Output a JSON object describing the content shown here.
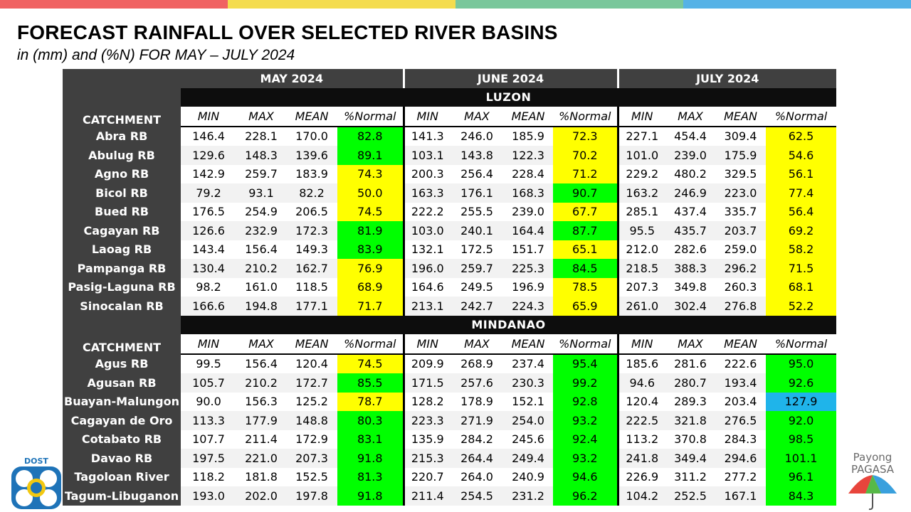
{
  "colors": [
    "#f06262",
    "#f4dc4e",
    "#79c79b",
    "#56b2e6"
  ],
  "title": "FORECAST RAINFALL OVER SELECTED RIVER BASINS",
  "subtitle": "in (mm) and (%N) FOR  MAY – JULY 2024",
  "months": [
    "MAY 2024",
    "JUNE 2024",
    "JULY 2024"
  ],
  "catchment_label": "CATCHMENT",
  "col_headers": [
    "MIN",
    "MAX",
    "MEAN",
    "%Normal",
    "MIN",
    "MAX",
    "MEAN",
    "%Normal",
    "MIN",
    "MAX",
    "MEAN",
    "%Normal"
  ],
  "regions": [
    {
      "name": "LUZON",
      "rows": [
        {
          "name": "Abra RB",
          "vals": [
            "146.4",
            "228.1",
            "170.0",
            "82.8",
            "141.3",
            "246.0",
            "185.9",
            "72.3",
            "227.1",
            "454.4",
            "309.4",
            "62.5"
          ],
          "cls": [
            "g",
            "y",
            "y"
          ]
        },
        {
          "name": "Abulug RB",
          "vals": [
            "129.6",
            "148.3",
            "139.6",
            "89.1",
            "103.1",
            "143.8",
            "122.3",
            "70.2",
            "101.0",
            "239.0",
            "175.9",
            "54.6"
          ],
          "cls": [
            "g",
            "y",
            "y"
          ]
        },
        {
          "name": "Agno RB",
          "vals": [
            "142.9",
            "259.7",
            "183.9",
            "74.3",
            "200.3",
            "256.4",
            "228.4",
            "71.2",
            "229.2",
            "480.2",
            "329.5",
            "56.1"
          ],
          "cls": [
            "y",
            "y",
            "y"
          ]
        },
        {
          "name": "Bicol RB",
          "vals": [
            "79.2",
            "93.1",
            "82.2",
            "50.0",
            "163.3",
            "176.1",
            "168.3",
            "90.7",
            "163.2",
            "246.9",
            "223.0",
            "77.4"
          ],
          "cls": [
            "y",
            "g",
            "y"
          ]
        },
        {
          "name": "Bued RB",
          "vals": [
            "176.5",
            "254.9",
            "206.5",
            "74.5",
            "222.2",
            "255.5",
            "239.0",
            "67.7",
            "285.1",
            "437.4",
            "335.7",
            "56.4"
          ],
          "cls": [
            "y",
            "y",
            "y"
          ]
        },
        {
          "name": "Cagayan RB",
          "vals": [
            "126.6",
            "232.9",
            "172.3",
            "81.9",
            "103.0",
            "240.1",
            "164.4",
            "87.7",
            "95.5",
            "435.7",
            "203.7",
            "69.2"
          ],
          "cls": [
            "g",
            "g",
            "y"
          ]
        },
        {
          "name": "Laoag RB",
          "vals": [
            "143.4",
            "156.4",
            "149.3",
            "83.9",
            "132.1",
            "172.5",
            "151.7",
            "65.1",
            "212.0",
            "282.6",
            "259.0",
            "58.2"
          ],
          "cls": [
            "g",
            "y",
            "y"
          ]
        },
        {
          "name": "Pampanga RB",
          "vals": [
            "130.4",
            "210.2",
            "162.7",
            "76.9",
            "196.0",
            "259.7",
            "225.3",
            "84.5",
            "218.5",
            "388.3",
            "296.2",
            "71.5"
          ],
          "cls": [
            "y",
            "g",
            "y"
          ]
        },
        {
          "name": "Pasig-Laguna RB",
          "vals": [
            "98.2",
            "161.0",
            "118.5",
            "68.9",
            "164.6",
            "249.5",
            "196.9",
            "78.5",
            "207.3",
            "349.8",
            "260.3",
            "68.1"
          ],
          "cls": [
            "y",
            "y",
            "y"
          ]
        },
        {
          "name": "Sinocalan RB",
          "vals": [
            "166.6",
            "194.8",
            "177.1",
            "71.7",
            "213.1",
            "242.7",
            "224.3",
            "65.9",
            "261.0",
            "302.4",
            "276.8",
            "52.2"
          ],
          "cls": [
            "y",
            "y",
            "y"
          ]
        }
      ]
    },
    {
      "name": "MINDANAO",
      "rows": [
        {
          "name": "Agus RB",
          "vals": [
            "99.5",
            "156.4",
            "120.4",
            "74.5",
            "209.9",
            "268.9",
            "237.4",
            "95.4",
            "185.6",
            "281.6",
            "222.6",
            "95.0"
          ],
          "cls": [
            "y",
            "g",
            "g"
          ]
        },
        {
          "name": "Agusan RB",
          "vals": [
            "105.7",
            "210.2",
            "172.7",
            "85.5",
            "171.5",
            "257.6",
            "230.3",
            "99.2",
            "94.6",
            "280.7",
            "193.4",
            "92.6"
          ],
          "cls": [
            "g",
            "g",
            "g"
          ]
        },
        {
          "name": "Buayan-Malungon",
          "vals": [
            "90.0",
            "156.3",
            "125.2",
            "78.7",
            "128.2",
            "178.9",
            "152.1",
            "92.8",
            "120.4",
            "289.3",
            "203.4",
            "127.9"
          ],
          "cls": [
            "y",
            "g",
            "b"
          ]
        },
        {
          "name": "Cagayan de Oro",
          "vals": [
            "113.3",
            "177.9",
            "148.8",
            "80.3",
            "223.3",
            "271.9",
            "254.0",
            "93.2",
            "222.5",
            "321.8",
            "276.5",
            "92.0"
          ],
          "cls": [
            "g",
            "g",
            "g"
          ]
        },
        {
          "name": "Cotabato RB",
          "vals": [
            "107.7",
            "211.4",
            "172.9",
            "83.1",
            "135.9",
            "284.2",
            "245.6",
            "92.4",
            "113.2",
            "370.8",
            "284.3",
            "98.5"
          ],
          "cls": [
            "g",
            "g",
            "g"
          ]
        },
        {
          "name": "Davao RB",
          "vals": [
            "197.5",
            "221.0",
            "207.3",
            "91.8",
            "215.3",
            "264.4",
            "249.4",
            "93.2",
            "241.8",
            "349.4",
            "294.6",
            "101.1"
          ],
          "cls": [
            "g",
            "g",
            "g"
          ]
        },
        {
          "name": "Tagoloan River",
          "vals": [
            "118.2",
            "181.8",
            "152.5",
            "81.3",
            "220.7",
            "264.0",
            "240.9",
            "94.6",
            "226.9",
            "311.2",
            "277.2",
            "96.1"
          ],
          "cls": [
            "g",
            "g",
            "g"
          ]
        },
        {
          "name": "Tagum-Libuganon",
          "vals": [
            "193.0",
            "202.0",
            "197.8",
            "91.8",
            "211.4",
            "254.5",
            "231.2",
            "96.2",
            "104.2",
            "252.5",
            "167.1",
            "84.3"
          ],
          "cls": [
            "g",
            "g",
            "g"
          ]
        }
      ]
    }
  ],
  "logos": {
    "left": {
      "text": "DOST",
      "icon": "dost-logo-icon"
    },
    "right": {
      "line1": "Payong",
      "line2": "PAGASA",
      "icon": "pagasa-umbrella-icon"
    }
  }
}
